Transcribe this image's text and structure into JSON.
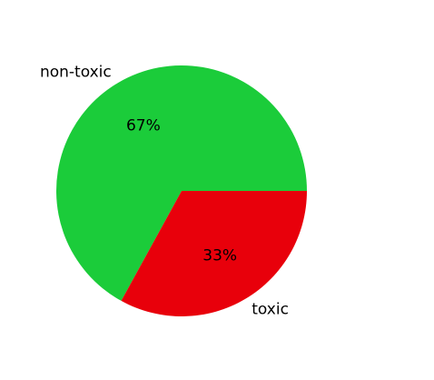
{
  "chart_data": {
    "type": "pie",
    "title": "",
    "slices": [
      {
        "label": "non-toxic",
        "value": 67,
        "pct_label": "67%",
        "color": "#1bcc3a"
      },
      {
        "label": "toxic",
        "value": 33,
        "pct_label": "33%",
        "color": "#e8000b"
      }
    ],
    "start_angle_deg": 0,
    "direction": "counterclockwise",
    "legend": "none"
  }
}
